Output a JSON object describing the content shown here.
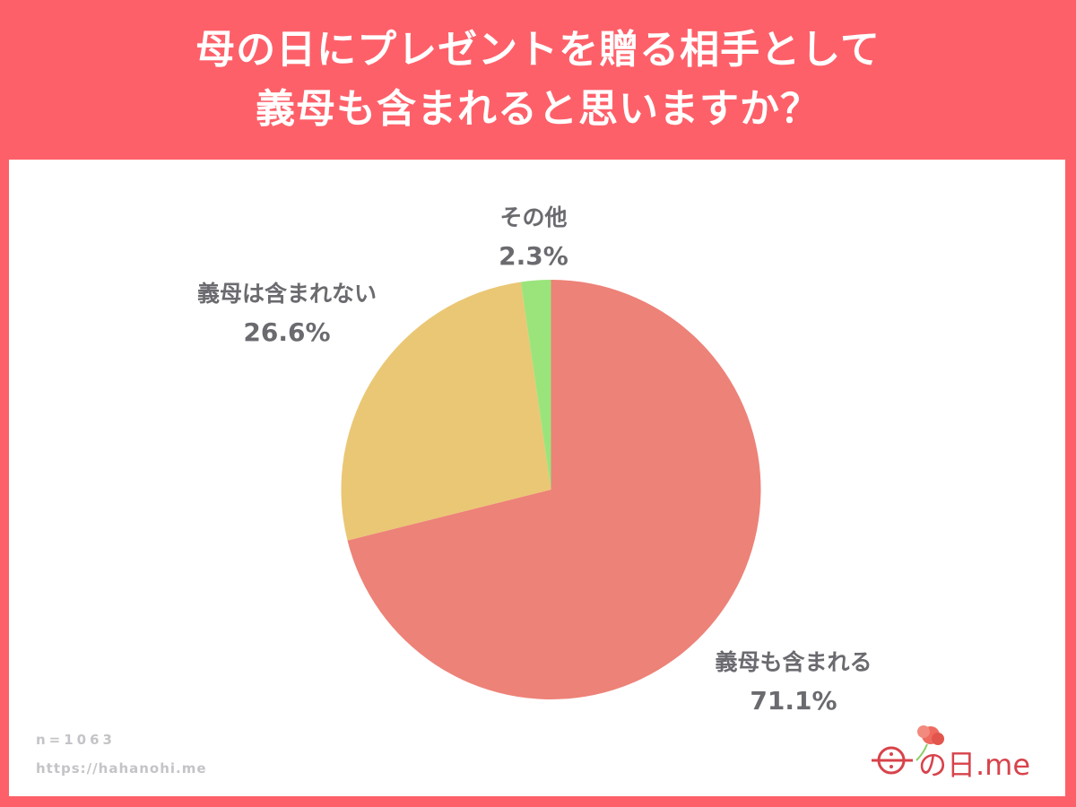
{
  "header": {
    "title_line1": "母の日にプレゼントを贈る相手として",
    "title_line2": "義母も含まれると思いますか？"
  },
  "colors": {
    "frame": "#fe6069",
    "panel": "#ffffff",
    "label_text": "#6b6a6f",
    "note_text": "#c4c4c8"
  },
  "chart_data": {
    "type": "pie",
    "title": "母の日にプレゼントを贈る相手として義母も含まれると思いますか？",
    "categories": [
      "義母も含まれる",
      "義母は含まれない",
      "その他"
    ],
    "values": [
      71.1,
      26.6,
      2.3
    ],
    "unit": "%",
    "colors": [
      "#ed8278",
      "#eac774",
      "#9be47b"
    ],
    "start_angle": "12 o'clock, clockwise",
    "sample_size": 1063
  },
  "labels": [
    {
      "name": "義母も含まれる",
      "pct": "71.1%"
    },
    {
      "name": "義母は含まれない",
      "pct": "26.6%"
    },
    {
      "name": "その他",
      "pct": "2.3%"
    }
  ],
  "footer": {
    "sample": "n=1063",
    "url": "https://hahanohi.me",
    "logo_text": "の日.me"
  }
}
